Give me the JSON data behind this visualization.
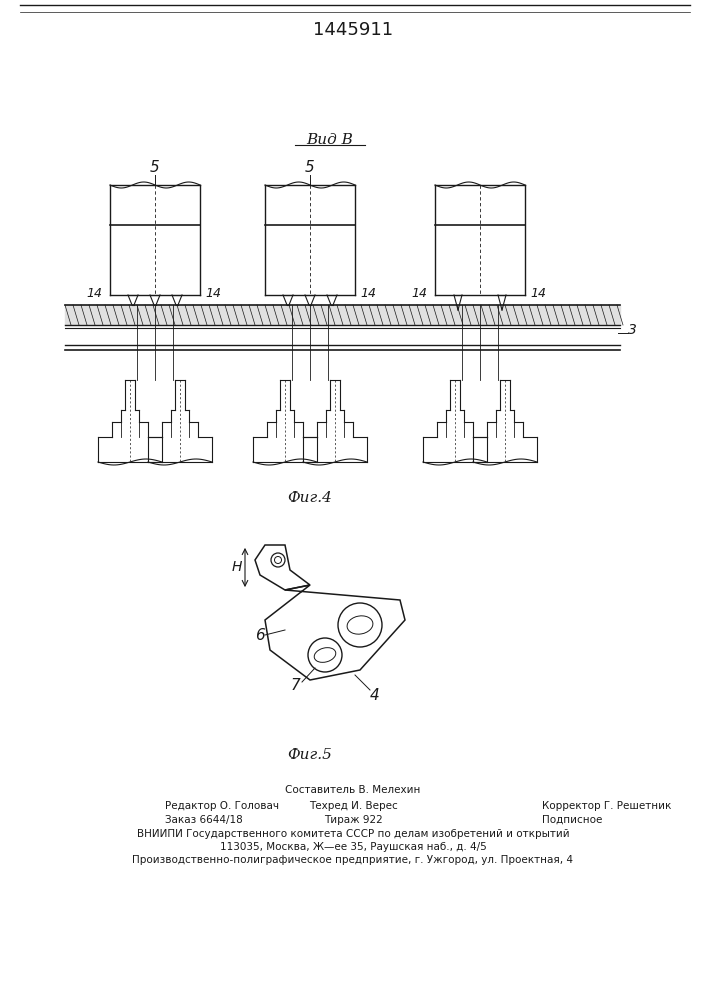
{
  "patent_number": "1445911",
  "background_color": "#ffffff",
  "line_color": "#1a1a1a",
  "fig4_caption": "Фиг.4",
  "fig5_caption": "Фиг.5",
  "vid_label": "Вид В",
  "footer_line1_center": "Составитель В. Мелехин",
  "footer_line2_left": "Редактор О. Головач",
  "footer_line2_center": "Техред И. Верес",
  "footer_line2_right": "Корректор Г. Решетник",
  "footer_line3_left": "Заказ 6644/18",
  "footer_line3_center": "Тираж 922",
  "footer_line3_right": "Подписное",
  "footer_line4": "ВНИИПИ Государственного комитета СССР по делам изобретений и открытий",
  "footer_line5": "113035, Москва, Ж—ее 35, Раушская наб., д. 4/5",
  "footer_line6": "Производственно-полиграфическое предприятие, г. Ужгород, ул. Проектная, 4"
}
